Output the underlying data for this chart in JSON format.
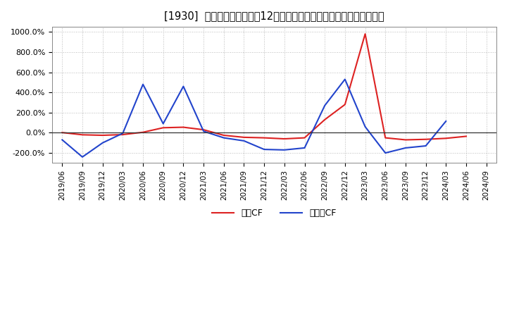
{
  "title": "[1930]  キャッシュフローの12か月移動合計の対前年同期増減率の推移",
  "ylim": [
    -300,
    1050
  ],
  "yticks": [
    -200,
    0,
    200,
    400,
    600,
    800,
    1000
  ],
  "background_color": "#ffffff",
  "plot_bg_color": "#ffffff",
  "grid_color": "#bbbbbb",
  "legend_labels": [
    "営業CF",
    "フリーCF"
  ],
  "line_colors": [
    "#dd2222",
    "#2244cc"
  ],
  "x_labels": [
    "2019/06",
    "2019/09",
    "2019/12",
    "2020/03",
    "2020/06",
    "2020/09",
    "2020/12",
    "2021/03",
    "2021/06",
    "2021/09",
    "2021/12",
    "2022/03",
    "2022/06",
    "2022/09",
    "2022/12",
    "2023/03",
    "2023/06",
    "2023/09",
    "2023/12",
    "2024/03",
    "2024/06",
    "2024/09"
  ],
  "operating_cf": [
    2.0,
    -20.0,
    -25.0,
    -18.0,
    5.0,
    50.0,
    55.0,
    30.0,
    -25.0,
    -45.0,
    -50.0,
    -60.0,
    -50.0,
    130.0,
    280.0,
    980.0,
    -50.0,
    -70.0,
    -65.0,
    -55.0,
    -35.0,
    null
  ],
  "free_cf": [
    -70.0,
    -240.0,
    -100.0,
    -5.0,
    480.0,
    90.0,
    460.0,
    15.0,
    -50.0,
    -80.0,
    -165.0,
    -170.0,
    -150.0,
    270.0,
    530.0,
    60.0,
    -200.0,
    -150.0,
    -130.0,
    115.0,
    null,
    null
  ]
}
